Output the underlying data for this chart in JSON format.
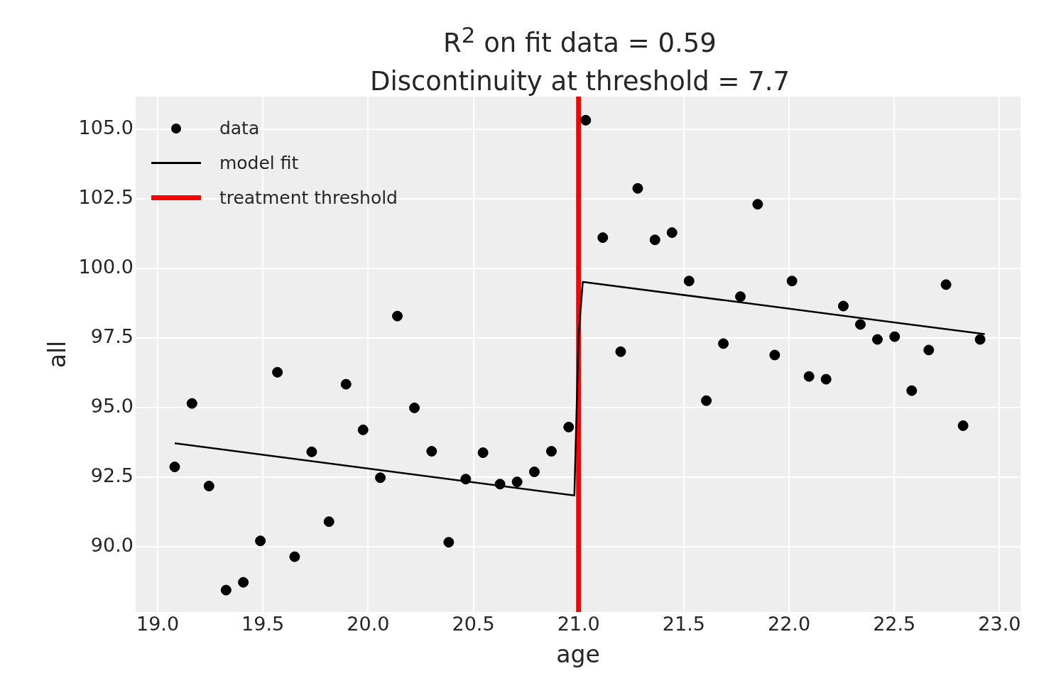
{
  "chart_data": {
    "type": "scatter",
    "title": "R$^{2}$ on fit data = 0.59",
    "subtitle": "Discontinuity at threshold = 7.7",
    "xlabel": "age",
    "ylabel": "all",
    "xlim": [
      18.895,
      23.1
    ],
    "ylim": [
      87.65,
      106.18
    ],
    "xticks": [
      {
        "value": 19,
        "label": "19.0"
      },
      {
        "value": 19.5,
        "label": "19.5"
      },
      {
        "value": 20,
        "label": "20.0"
      },
      {
        "value": 20.5,
        "label": "20.5"
      },
      {
        "value": 21,
        "label": "21.0"
      },
      {
        "value": 21.5,
        "label": "21.5"
      },
      {
        "value": 22,
        "label": "22.0"
      },
      {
        "value": 22.5,
        "label": "22.5"
      },
      {
        "value": 23,
        "label": "23.0"
      }
    ],
    "yticks": [
      {
        "value": 90,
        "label": "90.0"
      },
      {
        "value": 92.5,
        "label": "92.5"
      },
      {
        "value": 95,
        "label": "95.0"
      },
      {
        "value": 97.5,
        "label": "97.5"
      },
      {
        "value": 100,
        "label": "100.0"
      },
      {
        "value": 102.5,
        "label": "102.5"
      },
      {
        "value": 105,
        "label": "105.0"
      }
    ],
    "grid": true,
    "legend": "top left",
    "series": [
      {
        "name": "data",
        "marker": "circle",
        "color": "#000000",
        "x": [
          19.081,
          19.163,
          19.244,
          19.325,
          19.407,
          19.488,
          19.569,
          19.651,
          19.732,
          19.814,
          19.895,
          19.976,
          20.058,
          20.139,
          20.22,
          20.302,
          20.383,
          20.464,
          20.546,
          20.627,
          20.708,
          20.79,
          20.871,
          20.953,
          21.034,
          21.115,
          21.2,
          21.281,
          21.363,
          21.444,
          21.525,
          21.607,
          21.688,
          21.769,
          21.851,
          21.932,
          22.014,
          22.095,
          22.176,
          22.258,
          22.339,
          22.42,
          22.502,
          22.583,
          22.664,
          22.746,
          22.827,
          22.908
        ],
        "values": [
          92.87,
          95.15,
          92.18,
          88.44,
          88.72,
          90.21,
          96.27,
          89.64,
          93.41,
          90.9,
          95.84,
          94.2,
          92.48,
          98.29,
          94.99,
          93.43,
          90.16,
          92.43,
          93.38,
          92.25,
          92.33,
          92.69,
          93.43,
          94.3,
          105.33,
          101.11,
          97.01,
          102.88,
          101.03,
          101.29,
          99.55,
          95.25,
          97.3,
          98.99,
          102.31,
          96.89,
          99.55,
          96.12,
          96.02,
          98.65,
          97.99,
          97.45,
          97.55,
          95.61,
          97.07,
          99.42,
          94.35,
          97.45
        ]
      },
      {
        "name": "model fit",
        "type": "line",
        "marker": "none",
        "line_style": "solid",
        "color": "#000000",
        "x": [
          19.081,
          20.98,
          21.0,
          21.02,
          22.93
        ],
        "values": [
          93.72,
          91.84,
          97.6,
          99.52,
          97.64
        ]
      },
      {
        "name": "treatment threshold",
        "type": "line",
        "marker": "none",
        "line_style": "solid",
        "color": "#ff0000",
        "x": [
          21,
          21
        ],
        "values": [
          87.65,
          106.18
        ]
      }
    ]
  }
}
